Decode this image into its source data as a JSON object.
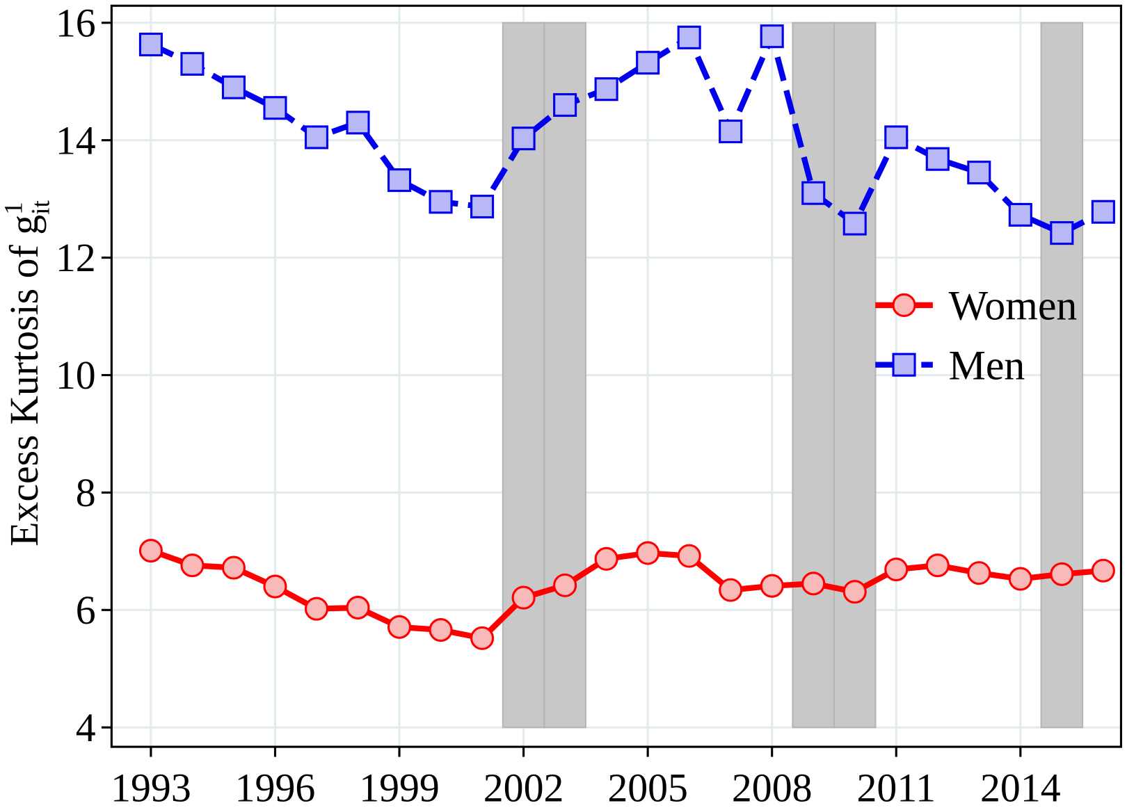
{
  "chart_data": {
    "type": "line",
    "ylabel": {
      "text": "Excess Kurtosis of g",
      "sup": "1",
      "sub": "it"
    },
    "x": [
      1993,
      1994,
      1995,
      1996,
      1997,
      1998,
      1999,
      2000,
      2001,
      2002,
      2003,
      2004,
      2005,
      2006,
      2007,
      2008,
      2009,
      2010,
      2011,
      2012,
      2013,
      2014,
      2015,
      2016
    ],
    "series": [
      {
        "name": "Women",
        "color": "#ff0000",
        "marker": "circle",
        "marker_fill": "#f9b9b9",
        "line_style": "solid",
        "values": [
          7.01,
          6.76,
          6.72,
          6.4,
          6.02,
          6.04,
          5.71,
          5.66,
          5.52,
          6.21,
          6.42,
          6.87,
          6.97,
          6.92,
          6.34,
          6.41,
          6.45,
          6.31,
          6.69,
          6.76,
          6.63,
          6.53,
          6.61,
          6.67
        ]
      },
      {
        "name": "Men",
        "color": "#0000ee",
        "marker": "square",
        "marker_fill": "#b8b8f6",
        "line_style": "dashed",
        "values": [
          15.63,
          15.3,
          14.9,
          14.55,
          14.05,
          14.3,
          13.32,
          12.95,
          12.87,
          14.03,
          14.6,
          14.87,
          15.32,
          15.75,
          14.15,
          15.77,
          13.1,
          12.58,
          14.05,
          13.68,
          13.45,
          12.73,
          12.42,
          12.78
        ]
      }
    ],
    "shaded_regions": [
      [
        2001.5,
        2002.5
      ],
      [
        2002.5,
        2003.5
      ],
      [
        2008.5,
        2009.5
      ],
      [
        2009.5,
        2010.5
      ],
      [
        2014.5,
        2015.5
      ]
    ],
    "shade_color": "#c8c8c8",
    "xlim": [
      1992.05,
      2016.43
    ],
    "xticks": [
      1993,
      1996,
      1999,
      2002,
      2005,
      2008,
      2011,
      2014
    ],
    "ylim": [
      3.67,
      16.29
    ],
    "yticks": [
      4,
      6,
      8,
      10,
      12,
      14,
      16
    ],
    "grid": true,
    "legend": "right"
  }
}
